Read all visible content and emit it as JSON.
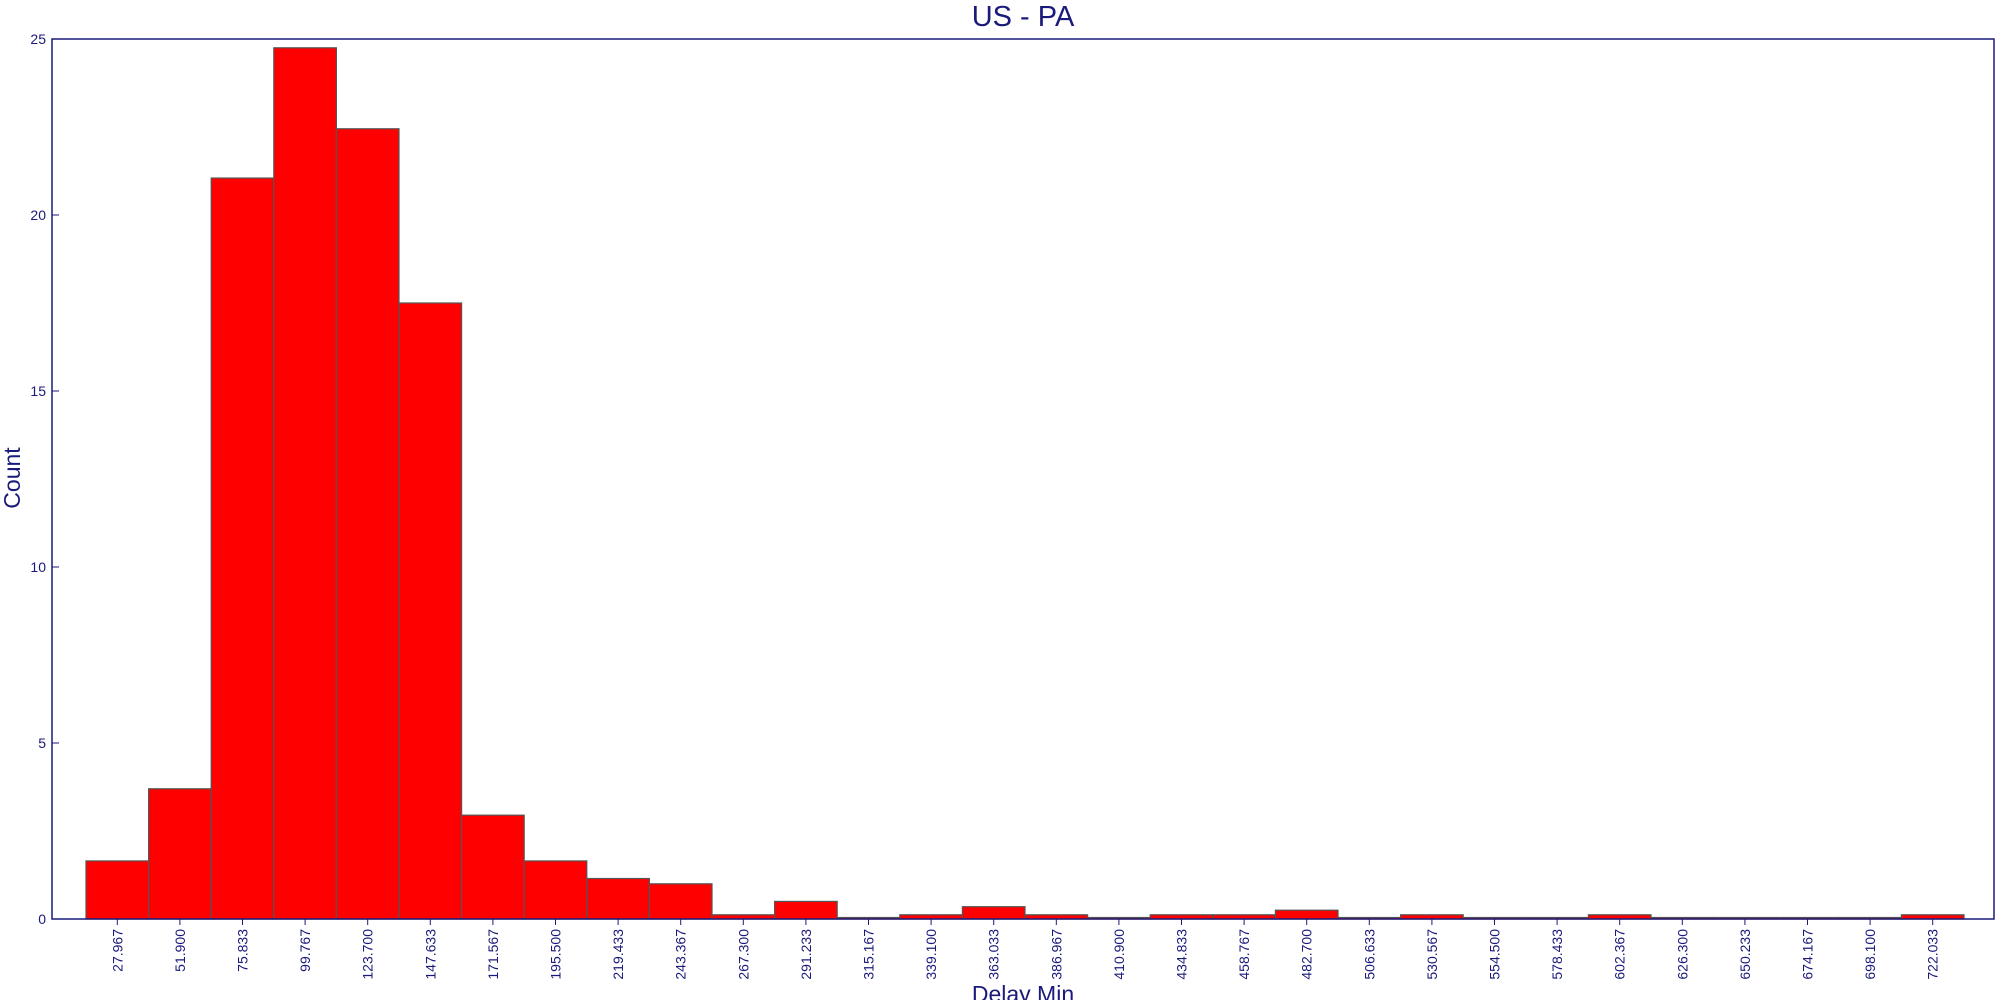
{
  "chart_data": {
    "type": "bar",
    "title": "US - PA",
    "xlabel": "Delay Min",
    "ylabel": "Count",
    "ylim": [
      0,
      25
    ],
    "yticks": [
      0,
      5,
      10,
      15,
      20,
      25
    ],
    "categories": [
      "27.967",
      "51.900",
      "75.833",
      "99.767",
      "123.700",
      "147.633",
      "171.567",
      "195.500",
      "219.433",
      "243.367",
      "267.300",
      "291.233",
      "315.167",
      "339.100",
      "363.033",
      "386.967",
      "410.900",
      "434.833",
      "458.767",
      "482.700",
      "506.633",
      "530.567",
      "554.500",
      "578.433",
      "602.367",
      "626.300",
      "650.233",
      "674.167",
      "698.100",
      "722.033"
    ],
    "values": [
      1.65,
      3.7,
      21.05,
      24.75,
      22.45,
      17.5,
      2.95,
      1.65,
      1.15,
      1.0,
      0.12,
      0.5,
      0.03,
      0.12,
      0.35,
      0.12,
      0.03,
      0.12,
      0.12,
      0.25,
      0.03,
      0.12,
      0.03,
      0.03,
      0.12,
      0.03,
      0.03,
      0.03,
      0.03,
      0.12
    ],
    "grid": false,
    "legend": "none",
    "colors": {
      "bar": "#ff0000",
      "bar_edge": "#555555",
      "axis": "#1a1a7a",
      "text": "#1a1a7a"
    }
  }
}
